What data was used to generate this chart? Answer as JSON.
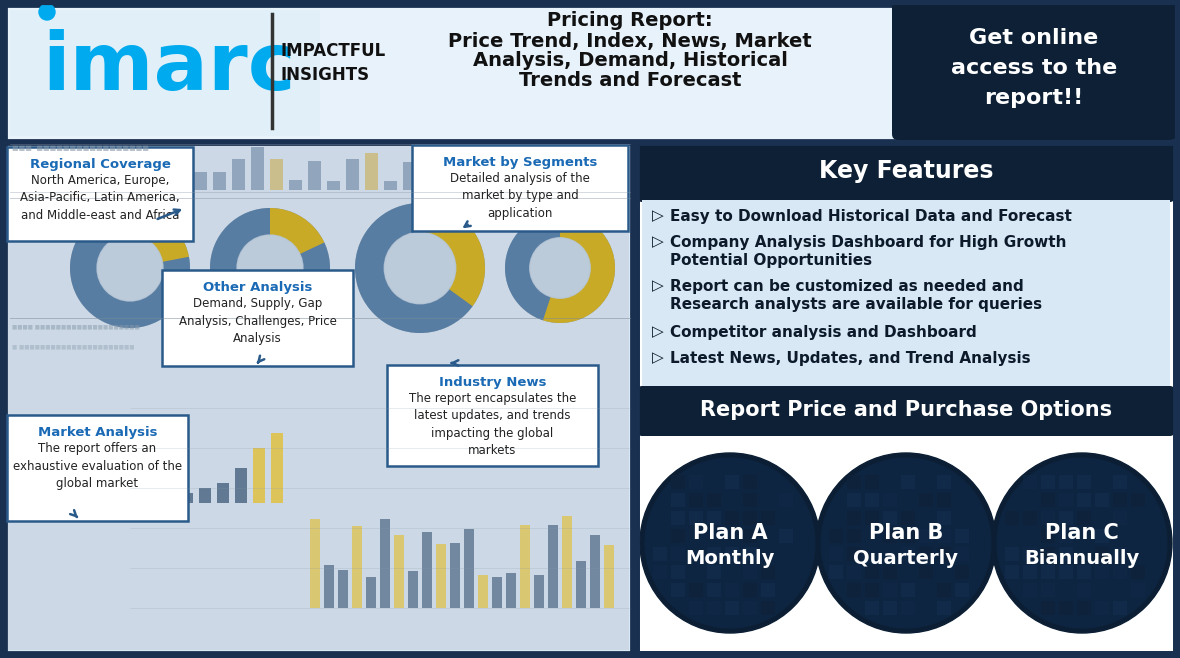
{
  "title_line1": "Pricing Report:",
  "title_line2": "Price Trend, Index, News, Market",
  "title_line3": "Analysis, Demand, Historical",
  "title_line4": "Trends and Forecast",
  "get_online_text": "Get online\naccess to the\nreport!!",
  "key_features_title": "Key Features",
  "features": [
    {
      "text": "Easy to Download Historical Data and Forecast",
      "bullet": true,
      "indent": false
    },
    {
      "text": "Company Analysis Dashboard for High Growth",
      "bullet": true,
      "indent": false
    },
    {
      "text": "Potential Opportunities",
      "bullet": false,
      "indent": true
    },
    {
      "text": "Report can be customized as needed and",
      "bullet": true,
      "indent": false
    },
    {
      "text": "Research analysts are available for queries",
      "bullet": false,
      "indent": true
    },
    {
      "text": "Competitor analysis and Dashboard",
      "bullet": true,
      "indent": false
    },
    {
      "text": "Latest News, Updates, and Trend Analysis",
      "bullet": true,
      "indent": false
    }
  ],
  "purchase_title": "Report Price and Purchase Options",
  "plans": [
    {
      "name": "Plan A",
      "sub": "Monthly"
    },
    {
      "name": "Plan B",
      "sub": "Quarterly"
    },
    {
      "name": "Plan C",
      "sub": "Biannually"
    }
  ],
  "regional_coverage_title": "Regional Coverage",
  "regional_coverage_text": "North America, Europe,\nAsia-Pacific, Latin America,\nand Middle-east and Africa",
  "market_segments_title": "Market by Segments",
  "market_segments_text": "Detailed analysis of the\nmarket by type and\napplication",
  "other_analysis_title": "Other Analysis",
  "other_analysis_text": "Demand, Supply, Gap\nAnalysis, Challenges, Price\nAnalysis",
  "industry_news_title": "Industry News",
  "industry_news_text": "The report encapsulates the\nlatest updates, and trends\nimpacting the global\nmarkets",
  "market_analysis_title": "Market Analysis",
  "market_analysis_text": "The report offers an\nexhaustive evaluation of the\nglobal market",
  "border_color": "#1a3050",
  "dark_navy": "#0d2035",
  "mid_navy": "#1a3a5c",
  "cyan_blue": "#00aaee",
  "light_blue_bg": "#d8e8f4",
  "lighter_blue_bg": "#e4eef8",
  "white": "#ffffff",
  "dark_text": "#0d1a2a",
  "accent_gold": "#e8b800",
  "ann_title_color": "#1a6ab5",
  "ann_border": "#2a5a8a"
}
